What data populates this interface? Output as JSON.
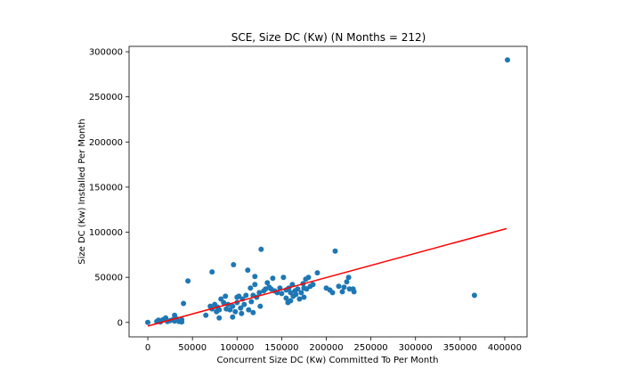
{
  "chart_data": {
    "type": "scatter",
    "title": "SCE, Size DC (Kw) (N Months = 212)",
    "xlabel": "Concurrent Size DC (Kw) Committed To Per Month",
    "ylabel": "Size DC (Kw) Installed Per Month",
    "xlim": [
      -21000,
      425000
    ],
    "ylim": [
      -16000,
      306000
    ],
    "xticks": [
      0,
      50000,
      100000,
      150000,
      200000,
      250000,
      300000,
      350000,
      400000
    ],
    "yticks": [
      0,
      50000,
      100000,
      150000,
      200000,
      250000,
      300000
    ],
    "grid": false,
    "colors": {
      "points": "#1f77b4",
      "fit_line": "#ff0000"
    },
    "points": [
      [
        0,
        0
      ],
      [
        10000,
        1000
      ],
      [
        12000,
        2500
      ],
      [
        14000,
        500
      ],
      [
        15000,
        1500
      ],
      [
        17000,
        3000
      ],
      [
        20000,
        5000
      ],
      [
        22000,
        1000
      ],
      [
        25000,
        2000
      ],
      [
        28000,
        3000
      ],
      [
        30000,
        8000
      ],
      [
        30000,
        1500
      ],
      [
        32000,
        4000
      ],
      [
        35000,
        1000
      ],
      [
        38000,
        500
      ],
      [
        38000,
        3000
      ],
      [
        40000,
        21000
      ],
      [
        45000,
        46000
      ],
      [
        65000,
        8000
      ],
      [
        70000,
        18000
      ],
      [
        72000,
        15000
      ],
      [
        72000,
        56000
      ],
      [
        75000,
        20000
      ],
      [
        77000,
        12000
      ],
      [
        78000,
        17000
      ],
      [
        80000,
        5000
      ],
      [
        80000,
        14000
      ],
      [
        82000,
        26000
      ],
      [
        85000,
        22000
      ],
      [
        87000,
        29000
      ],
      [
        88000,
        15000
      ],
      [
        90000,
        20000
      ],
      [
        92000,
        14000
      ],
      [
        95000,
        6000
      ],
      [
        95000,
        18000
      ],
      [
        96000,
        64000
      ],
      [
        98000,
        12000
      ],
      [
        100000,
        28000
      ],
      [
        100000,
        22000
      ],
      [
        102000,
        29000
      ],
      [
        104000,
        16000
      ],
      [
        105000,
        10000
      ],
      [
        106000,
        26000
      ],
      [
        108000,
        20000
      ],
      [
        110000,
        30000
      ],
      [
        112000,
        58000
      ],
      [
        113000,
        14000
      ],
      [
        115000,
        38000
      ],
      [
        116000,
        23000
      ],
      [
        118000,
        11000
      ],
      [
        118000,
        30000
      ],
      [
        120000,
        42000
      ],
      [
        120000,
        51000
      ],
      [
        122000,
        28000
      ],
      [
        125000,
        33000
      ],
      [
        126000,
        18000
      ],
      [
        127000,
        81000
      ],
      [
        130000,
        35000
      ],
      [
        132000,
        37000
      ],
      [
        134000,
        44000
      ],
      [
        136000,
        39000
      ],
      [
        138000,
        37000
      ],
      [
        140000,
        49000
      ],
      [
        142000,
        35000
      ],
      [
        145000,
        33000
      ],
      [
        148000,
        38000
      ],
      [
        150000,
        32000
      ],
      [
        152000,
        50000
      ],
      [
        155000,
        27000
      ],
      [
        155000,
        36000
      ],
      [
        157000,
        22000
      ],
      [
        158000,
        38000
      ],
      [
        160000,
        33000
      ],
      [
        160000,
        24000
      ],
      [
        162000,
        42000
      ],
      [
        163000,
        29000
      ],
      [
        165000,
        35000
      ],
      [
        166000,
        31000
      ],
      [
        168000,
        37000
      ],
      [
        170000,
        26000
      ],
      [
        172000,
        33000
      ],
      [
        174000,
        43000
      ],
      [
        175000,
        38000
      ],
      [
        175000,
        28000
      ],
      [
        177000,
        48000
      ],
      [
        178000,
        37000
      ],
      [
        180000,
        50000
      ],
      [
        182000,
        40000
      ],
      [
        185000,
        42000
      ],
      [
        190000,
        55000
      ],
      [
        200000,
        38000
      ],
      [
        204000,
        36000
      ],
      [
        207000,
        33000
      ],
      [
        210000,
        79000
      ],
      [
        214000,
        40000
      ],
      [
        218000,
        34000
      ],
      [
        220000,
        39000
      ],
      [
        223000,
        45000
      ],
      [
        225000,
        50000
      ],
      [
        226000,
        37000
      ],
      [
        230000,
        37000
      ],
      [
        231000,
        34000
      ],
      [
        366000,
        30000
      ],
      [
        403000,
        291000
      ]
    ],
    "fit_line": {
      "x": [
        0,
        402000
      ],
      "y": [
        -4000,
        104000
      ]
    }
  }
}
